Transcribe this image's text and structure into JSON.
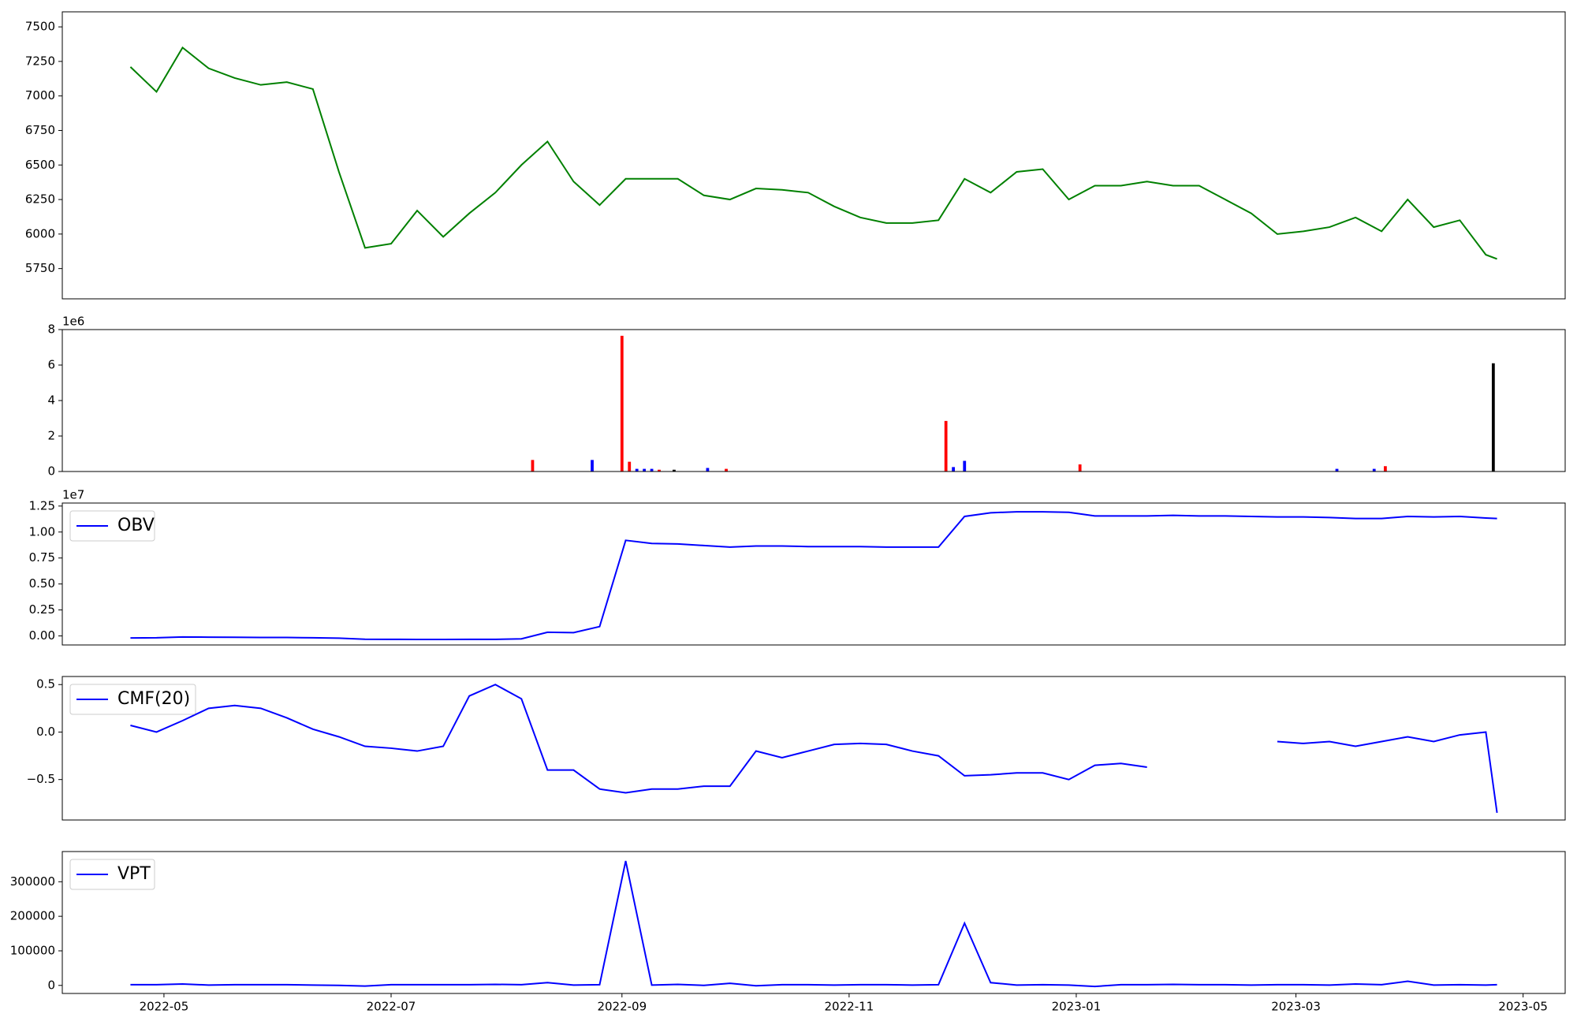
{
  "chart_data": [
    {
      "type": "line",
      "color": "#008000",
      "x": [
        19104,
        19111,
        19118,
        19125,
        19132,
        19139,
        19146,
        19153,
        19160,
        19167,
        19174,
        19181,
        19188,
        19195,
        19202,
        19209,
        19216,
        19223,
        19230,
        19237,
        19244,
        19251,
        19258,
        19265,
        19272,
        19279,
        19286,
        19293,
        19300,
        19307,
        19314,
        19321,
        19328,
        19335,
        19342,
        19349,
        19356,
        19363,
        19370,
        19377,
        19384,
        19391,
        19398,
        19405,
        19412,
        19419,
        19426,
        19433,
        19440,
        19447,
        19454,
        19461,
        19468,
        19471
      ],
      "values": [
        7210,
        7030,
        7350,
        7200,
        7130,
        7080,
        7100,
        7050,
        6450,
        5900,
        5930,
        6170,
        5980,
        6150,
        6300,
        6500,
        6670,
        6380,
        6210,
        6400,
        6400,
        6400,
        6280,
        6250,
        6330,
        6320,
        6300,
        6200,
        6120,
        6080,
        6080,
        6100,
        6400,
        6300,
        6450,
        6470,
        6250,
        6350,
        6350,
        6380,
        6350,
        6350,
        6250,
        6150,
        6000,
        6020,
        6050,
        6120,
        6020,
        6250,
        6050,
        6100,
        5850,
        5820
      ],
      "xlim": [
        19085.7,
        19489.3
      ],
      "ylim": [
        5531,
        7609
      ],
      "yticks": [
        5750,
        6000,
        6250,
        6500,
        6750,
        7000,
        7250,
        7500
      ]
    },
    {
      "type": "bar",
      "x": [
        19212,
        19228,
        19236,
        19238,
        19240,
        19242,
        19244,
        19246,
        19250,
        19259,
        19264,
        19323,
        19325,
        19328,
        19359,
        19428,
        19438,
        19441,
        19470
      ],
      "values": [
        650000,
        650000,
        7650000,
        550000,
        150000,
        150000,
        150000,
        100000,
        100000,
        200000,
        150000,
        2850000,
        250000,
        600000,
        400000,
        150000,
        150000,
        300000,
        6100000
      ],
      "colors": [
        "#ff0000",
        "#0000ff",
        "#ff0000",
        "#ff0000",
        "#0000ff",
        "#0000ff",
        "#0000ff",
        "#ff0000",
        "#000000",
        "#0000ff",
        "#ff0000",
        "#ff0000",
        "#0000ff",
        "#0000ff",
        "#ff0000",
        "#0000ff",
        "#0000ff",
        "#ff0000",
        "#000000"
      ],
      "xlim": [
        19085.7,
        19489.3
      ],
      "ylim": [
        0,
        8000000
      ],
      "y_offset_label": "1e6",
      "yticks": [
        0,
        {
          "value": 2000000,
          "label": "2"
        },
        {
          "value": 4000000,
          "label": "4"
        },
        {
          "value": 6000000,
          "label": "6"
        },
        {
          "value": 8000000,
          "label": "8"
        }
      ]
    },
    {
      "type": "line",
      "legend": "upper left",
      "x": [
        19104,
        19111,
        19118,
        19125,
        19132,
        19139,
        19146,
        19153,
        19160,
        19167,
        19174,
        19181,
        19188,
        19195,
        19202,
        19209,
        19216,
        19223,
        19230,
        19237,
        19244,
        19251,
        19258,
        19265,
        19272,
        19279,
        19286,
        19293,
        19300,
        19307,
        19314,
        19321,
        19328,
        19335,
        19342,
        19349,
        19356,
        19363,
        19370,
        19377,
        19384,
        19391,
        19398,
        19405,
        19412,
        19419,
        19426,
        19433,
        19440,
        19447,
        19454,
        19461,
        19468,
        19471
      ],
      "series": [
        {
          "name": "OBV",
          "color": "#0000ff",
          "values": [
            -200000,
            -180000,
            -100000,
            -120000,
            -130000,
            -150000,
            -150000,
            -180000,
            -220000,
            -320000,
            -330000,
            -340000,
            -340000,
            -330000,
            -330000,
            -280000,
            350000,
            320000,
            900000,
            9200000,
            8900000,
            8850000,
            8700000,
            8550000,
            8650000,
            8650000,
            8600000,
            8600000,
            8600000,
            8550000,
            8550000,
            8550000,
            11500000,
            11850000,
            11950000,
            11950000,
            11900000,
            11550000,
            11550000,
            11550000,
            11600000,
            11550000,
            11550000,
            11500000,
            11450000,
            11450000,
            11400000,
            11300000,
            11300000,
            11500000,
            11450000,
            11500000,
            11350000,
            11300000
          ]
        }
      ],
      "xlim": [
        19085.7,
        19489.3
      ],
      "ylim": [
        -870000,
        12790000
      ],
      "y_offset_label": "1e7",
      "yticks": [
        {
          "value": 0,
          "label": "0.00"
        },
        {
          "value": 2500000,
          "label": "0.25"
        },
        {
          "value": 5000000,
          "label": "0.50"
        },
        {
          "value": 7500000,
          "label": "0.75"
        },
        {
          "value": 10000000,
          "label": "1.00"
        },
        {
          "value": 12500000,
          "label": "1.25"
        }
      ]
    },
    {
      "type": "line",
      "legend": "upper left",
      "x": [
        19104,
        19111,
        19118,
        19125,
        19132,
        19139,
        19146,
        19153,
        19160,
        19167,
        19174,
        19181,
        19188,
        19195,
        19202,
        19209,
        19216,
        19223,
        19230,
        19237,
        19244,
        19251,
        19258,
        19265,
        19272,
        19279,
        19286,
        19293,
        19300,
        19307,
        19314,
        19321,
        19328,
        19335,
        19342,
        19349,
        19356,
        19363,
        19370,
        19377,
        19384,
        19391,
        19398,
        19405,
        19412,
        19419,
        19426,
        19433,
        19440,
        19447,
        19454,
        19461,
        19468,
        19471
      ],
      "series": [
        {
          "name": "CMF(20)",
          "color": "#0000ff",
          "values": [
            0.07,
            0.0,
            0.12,
            0.25,
            0.28,
            0.25,
            0.15,
            0.03,
            -0.05,
            -0.15,
            -0.17,
            -0.2,
            -0.15,
            0.38,
            0.5,
            0.35,
            -0.4,
            -0.4,
            -0.6,
            -0.64,
            -0.6,
            -0.6,
            -0.57,
            -0.57,
            -0.2,
            -0.27,
            -0.2,
            -0.13,
            -0.12,
            -0.13,
            -0.2,
            -0.25,
            -0.46,
            -0.45,
            -0.43,
            -0.43,
            -0.5,
            -0.35,
            -0.33,
            -0.37,
            null,
            null,
            null,
            null,
            -0.1,
            -0.12,
            -0.1,
            -0.15,
            -0.1,
            -0.05,
            -0.1,
            -0.03,
            0.0,
            -0.85
          ]
        }
      ],
      "xlim": [
        19085.7,
        19489.3
      ],
      "ylim": [
        -0.926,
        0.585
      ],
      "yticks": [
        {
          "value": -0.5,
          "label": "−0.5"
        },
        {
          "value": 0,
          "label": "0.0"
        },
        {
          "value": 0.5,
          "label": "0.5"
        }
      ]
    },
    {
      "type": "line",
      "legend": "upper left",
      "x": [
        19104,
        19111,
        19118,
        19125,
        19132,
        19139,
        19146,
        19153,
        19160,
        19167,
        19174,
        19181,
        19188,
        19195,
        19202,
        19209,
        19216,
        19223,
        19230,
        19237,
        19244,
        19251,
        19258,
        19265,
        19272,
        19279,
        19286,
        19293,
        19300,
        19307,
        19314,
        19321,
        19328,
        19335,
        19342,
        19349,
        19356,
        19363,
        19370,
        19377,
        19384,
        19391,
        19398,
        19405,
        19412,
        19419,
        19426,
        19433,
        19440,
        19447,
        19454,
        19461,
        19468,
        19471
      ],
      "series": [
        {
          "name": "VPT",
          "color": "#0000ff",
          "values": [
            2000,
            2000,
            4000,
            1000,
            2000,
            2000,
            2000,
            1000,
            0,
            -2000,
            2000,
            2000,
            2000,
            2000,
            3000,
            2000,
            8000,
            1000,
            2000,
            360000,
            1000,
            3000,
            0,
            6000,
            -1000,
            2000,
            2000,
            1000,
            2000,
            2000,
            1000,
            2000,
            180000,
            8000,
            1000,
            2000,
            1000,
            -3000,
            2000,
            2000,
            3000,
            2000,
            2000,
            1000,
            2000,
            2000,
            1000,
            4000,
            2000,
            12000,
            1000,
            2000,
            1000,
            2000
          ]
        }
      ],
      "xlim": [
        19085.7,
        19489.3
      ],
      "ylim": [
        -23300,
        387400
      ],
      "yticks": [
        0,
        100000,
        200000,
        300000
      ],
      "xticks": [
        {
          "value": 19113,
          "label": "2022-05"
        },
        {
          "value": 19174,
          "label": "2022-07"
        },
        {
          "value": 19236,
          "label": "2022-09"
        },
        {
          "value": 19297,
          "label": "2022-11"
        },
        {
          "value": 19358,
          "label": "2023-01"
        },
        {
          "value": 19417,
          "label": "2023-03"
        },
        {
          "value": 19478,
          "label": "2023-05"
        }
      ]
    }
  ]
}
